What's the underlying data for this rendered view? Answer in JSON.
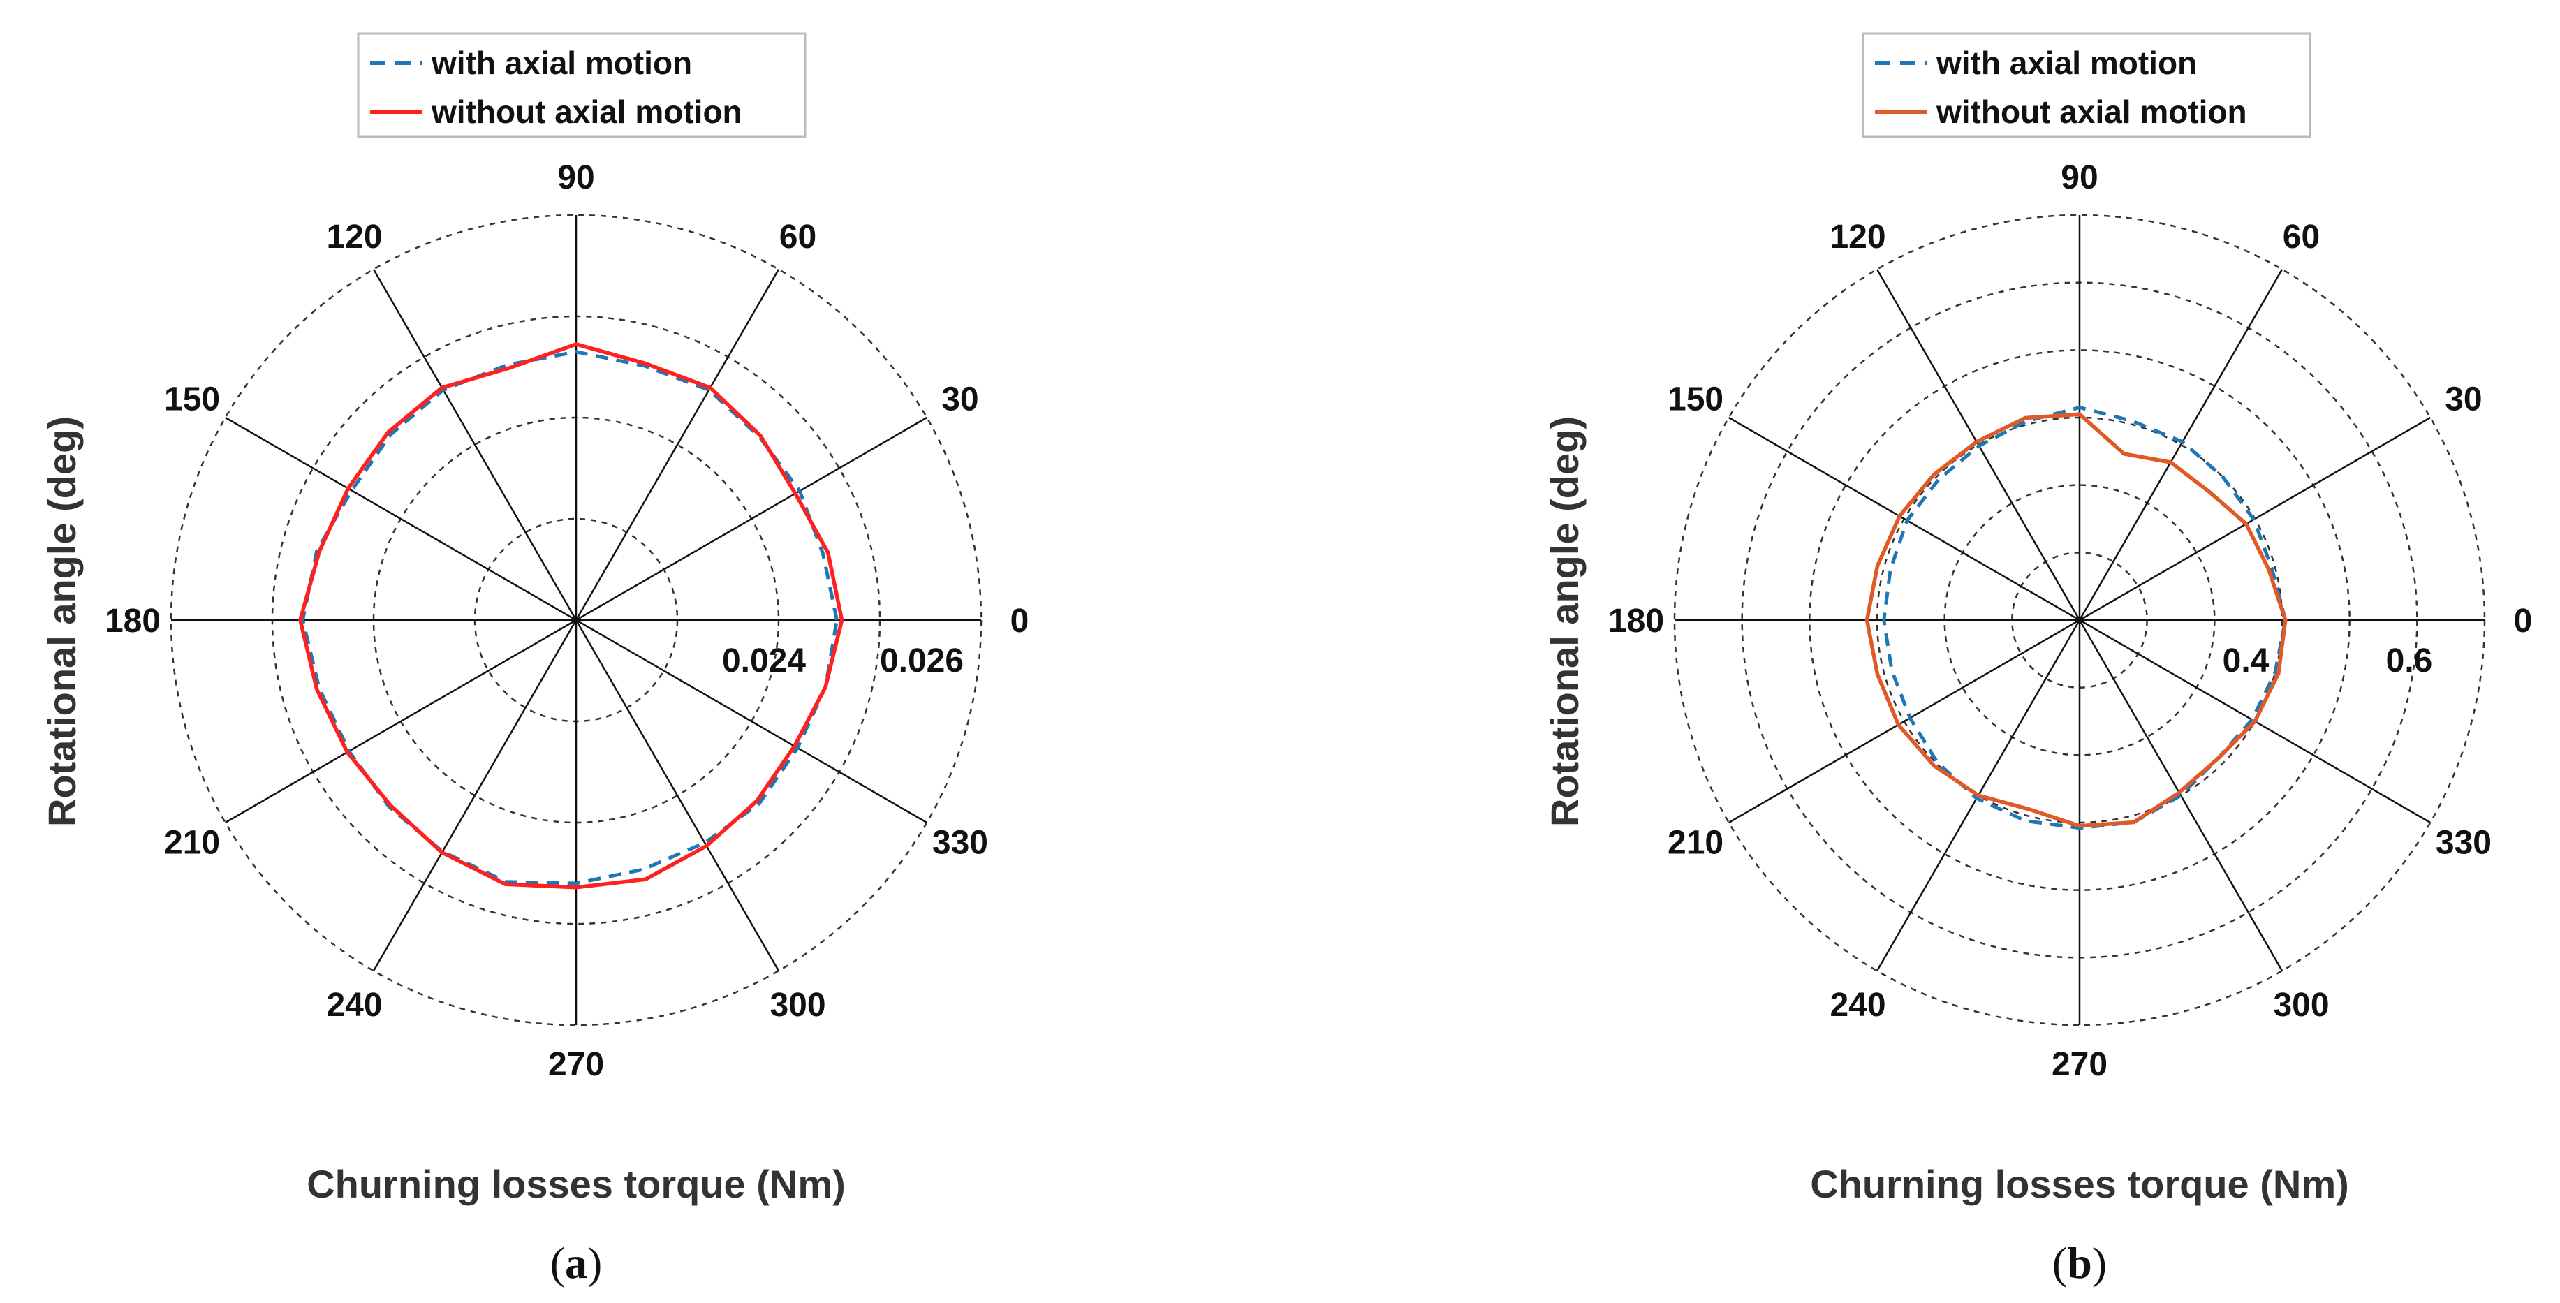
{
  "chart_data": [
    {
      "type": "polar-line",
      "panel_label": "a",
      "xlabel": "Churning losses torque (Nm)",
      "ylabel": "Rotational angle (deg)",
      "angle_ticks": [
        "0",
        "30",
        "60",
        "90",
        "120",
        "150",
        "180",
        "210",
        "240",
        "270",
        "300",
        "330"
      ],
      "radial_range": [
        0.02,
        0.028
      ],
      "radial_rings": [
        0.022,
        0.024,
        0.026,
        0.028
      ],
      "radial_tick_labels": [
        "0.024",
        "0.026"
      ],
      "grid": true,
      "legend": {
        "placement": "top",
        "entries": [
          "with axial motion",
          "without axial motion"
        ]
      },
      "series": [
        {
          "name": "with axial motion",
          "style": "dashed",
          "color": "#1f77b4",
          "angles": [
            0,
            15,
            30,
            45,
            60,
            75,
            90,
            105,
            120,
            135,
            150,
            165,
            180,
            195,
            210,
            225,
            240,
            255,
            270,
            285,
            300,
            315,
            330,
            345
          ],
          "values": [
            0.02515,
            0.02505,
            0.0251,
            0.02512,
            0.02525,
            0.0252,
            0.0253,
            0.02522,
            0.02525,
            0.02518,
            0.02512,
            0.0253,
            0.0254,
            0.02525,
            0.02518,
            0.02522,
            0.02528,
            0.02535,
            0.0252,
            0.0251,
            0.02508,
            0.02512,
            0.02505,
            0.0251
          ]
        },
        {
          "name": "without axial motion",
          "style": "solid",
          "color": "#ff2020",
          "angles": [
            0,
            15,
            30,
            45,
            60,
            75,
            90,
            105,
            120,
            135,
            150,
            165,
            180,
            195,
            210,
            225,
            240,
            255,
            270,
            285,
            300,
            315,
            330,
            345
          ],
          "values": [
            0.02525,
            0.02515,
            0.025,
            0.02515,
            0.0253,
            0.02525,
            0.02545,
            0.02515,
            0.0253,
            0.02525,
            0.0252,
            0.02525,
            0.02545,
            0.0253,
            0.02522,
            0.02518,
            0.0253,
            0.0254,
            0.02528,
            0.0253,
            0.02515,
            0.02505,
            0.02498,
            0.0251
          ]
        }
      ]
    },
    {
      "type": "polar-line",
      "panel_label": "b",
      "xlabel": "Churning losses torque (Nm)",
      "ylabel": "Rotational angle (deg)",
      "angle_ticks": [
        "0",
        "30",
        "60",
        "90",
        "120",
        "150",
        "180",
        "210",
        "240",
        "270",
        "300",
        "330"
      ],
      "radial_range": [
        0.2,
        0.8
      ],
      "radial_rings": [
        0.3,
        0.4,
        0.5,
        0.6,
        0.7,
        0.8
      ],
      "radial_tick_labels": [
        "0.4",
        "0.6"
      ],
      "grid": true,
      "legend": {
        "placement": "top",
        "entries": [
          "with axial motion",
          "without axial motion"
        ]
      },
      "series": [
        {
          "name": "with axial motion",
          "style": "dashed",
          "color": "#1f77b4",
          "angles": [
            0,
            15,
            30,
            45,
            60,
            75,
            90,
            105,
            120,
            135,
            150,
            165,
            180,
            195,
            210,
            225,
            240,
            255,
            270,
            285,
            300,
            315,
            330,
            345
          ],
          "values": [
            0.505,
            0.495,
            0.498,
            0.5,
            0.505,
            0.505,
            0.515,
            0.505,
            0.498,
            0.495,
            0.495,
            0.49,
            0.49,
            0.488,
            0.49,
            0.498,
            0.505,
            0.508,
            0.508,
            0.51,
            0.5,
            0.49,
            0.495,
            0.5
          ]
        },
        {
          "name": "without axial motion",
          "style": "solid",
          "color": "#e05a28",
          "angles": [
            0,
            15,
            30,
            45,
            60,
            75,
            90,
            105,
            120,
            135,
            150,
            165,
            180,
            195,
            210,
            225,
            240,
            255,
            270,
            285,
            300,
            315,
            330,
            345
          ],
          "values": [
            0.505,
            0.49,
            0.485,
            0.47,
            0.47,
            0.455,
            0.505,
            0.51,
            0.505,
            0.505,
            0.508,
            0.51,
            0.515,
            0.51,
            0.51,
            0.505,
            0.5,
            0.49,
            0.505,
            0.51,
            0.495,
            0.49,
            0.5,
            0.505
          ]
        }
      ]
    }
  ]
}
